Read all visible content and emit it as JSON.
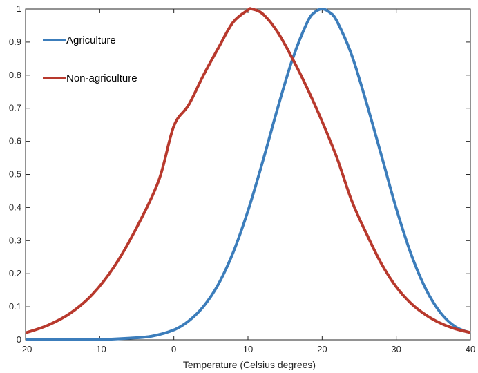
{
  "chart_data": {
    "type": "line",
    "title": "",
    "xlabel": "Temperature (Celsius degrees)",
    "ylabel": "",
    "xlim": [
      -20,
      40
    ],
    "ylim": [
      0,
      1
    ],
    "xticks": [
      -20,
      -10,
      0,
      10,
      20,
      30,
      40
    ],
    "yticks": [
      0,
      0.1,
      0.2,
      0.3,
      0.4,
      0.5,
      0.6,
      0.7,
      0.8,
      0.9,
      1
    ],
    "ytick_labels": [
      "0",
      "0.1",
      "0.2",
      "0.3",
      "0.4",
      "0.5",
      "0.6",
      "0.7",
      "0.8",
      "0.9",
      "1"
    ],
    "grid": false,
    "legend_position": "top-left",
    "series": [
      {
        "name": "Agriculture",
        "color": "#3C7DBB",
        "x": [
          -20,
          -15,
          -10,
          -6,
          -3,
          0,
          2,
          4,
          6,
          8,
          10,
          12,
          14,
          16,
          18,
          19,
          20,
          21,
          22,
          24,
          26,
          28,
          30,
          32,
          34,
          36,
          38,
          40
        ],
        "y": [
          0.0,
          0.0,
          0.001,
          0.005,
          0.011,
          0.03,
          0.057,
          0.101,
          0.168,
          0.264,
          0.39,
          0.54,
          0.7,
          0.848,
          0.96,
          0.99,
          1.0,
          0.99,
          0.963,
          0.86,
          0.715,
          0.557,
          0.397,
          0.259,
          0.153,
          0.081,
          0.039,
          0.021
        ]
      },
      {
        "name": "Non-agriculture",
        "color": "#B8392D",
        "x": [
          -20,
          -17,
          -14,
          -11,
          -8,
          -5,
          -2,
          0,
          2,
          4,
          6,
          8,
          10,
          10.5,
          12,
          14,
          16,
          18,
          20,
          22,
          24,
          26,
          28,
          30,
          32,
          34,
          36,
          38,
          40
        ],
        "y": [
          0.021,
          0.044,
          0.08,
          0.137,
          0.223,
          0.34,
          0.484,
          0.646,
          0.71,
          0.8,
          0.882,
          0.96,
          0.997,
          1.0,
          0.985,
          0.93,
          0.85,
          0.76,
          0.66,
          0.55,
          0.42,
          0.32,
          0.23,
          0.16,
          0.11,
          0.075,
          0.05,
          0.033,
          0.022
        ]
      }
    ]
  }
}
